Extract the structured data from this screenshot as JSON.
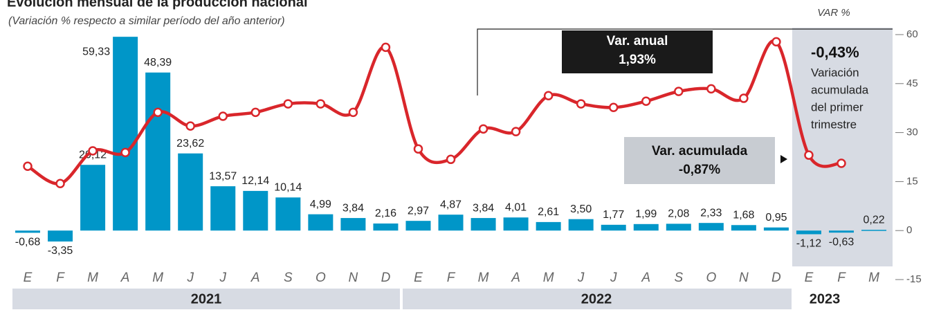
{
  "chart_data": {
    "type": "bar",
    "title": "Evolución mensual de la producción nacional",
    "subtitle": "(Variación % respecto a similar período del año anterior)",
    "y_axis_label": "VAR %",
    "categories": [
      "E",
      "F",
      "M",
      "A",
      "M",
      "J",
      "J",
      "A",
      "S",
      "O",
      "N",
      "D",
      "E",
      "F",
      "M",
      "A",
      "M",
      "J",
      "J",
      "A",
      "S",
      "O",
      "N",
      "D",
      "E",
      "F",
      "M"
    ],
    "years": [
      "2021",
      "2022",
      "2023"
    ],
    "series": [
      {
        "type": "bar",
        "color": "#0096c8",
        "values": [
          -0.68,
          -3.35,
          20.12,
          59.33,
          48.39,
          23.62,
          13.57,
          12.14,
          10.14,
          4.99,
          3.84,
          2.16,
          2.97,
          4.87,
          3.84,
          4.01,
          2.61,
          3.5,
          1.77,
          1.99,
          2.08,
          2.33,
          1.68,
          0.95,
          -1.12,
          -0.63,
          0.22
        ],
        "value_labels": [
          "-0,68",
          "-3,35",
          "20,12",
          "59,33",
          "48,39",
          "23,62",
          "13,57",
          "12,14",
          "10,14",
          "4,99",
          "3,84",
          "2,16",
          "2,97",
          "4,87",
          "3,84",
          "4,01",
          "2,61",
          "3,50",
          "1,77",
          "1,99",
          "2,08",
          "2,33",
          "1,68",
          "0,95",
          "-1,12",
          "-0,63",
          "0,22"
        ]
      },
      {
        "type": "line",
        "color": "#d9262b",
        "values": [
          19.7,
          14.4,
          24.4,
          23.9,
          36.2,
          32.0,
          35.0,
          36.2,
          38.8,
          38.8,
          36.2,
          56.1,
          25.0,
          21.8,
          31.1,
          30.3,
          41.3,
          38.8,
          37.7,
          39.6,
          42.6,
          43.4,
          40.5,
          57.8,
          23.1,
          20.6,
          null
        ]
      }
    ],
    "ylim": [
      -15,
      60
    ],
    "yticks": [
      60,
      45,
      30,
      15,
      0,
      -15
    ],
    "annotations": {
      "annual_label": "Var. anual",
      "annual_value": "1,93%",
      "cumulative_label": "Var. acumulada",
      "cumulative_value": "-0,87%",
      "quarter_value": "-0,43%",
      "quarter_text": [
        "Variación",
        "acumulada",
        "del primer",
        "trimestre"
      ]
    }
  }
}
